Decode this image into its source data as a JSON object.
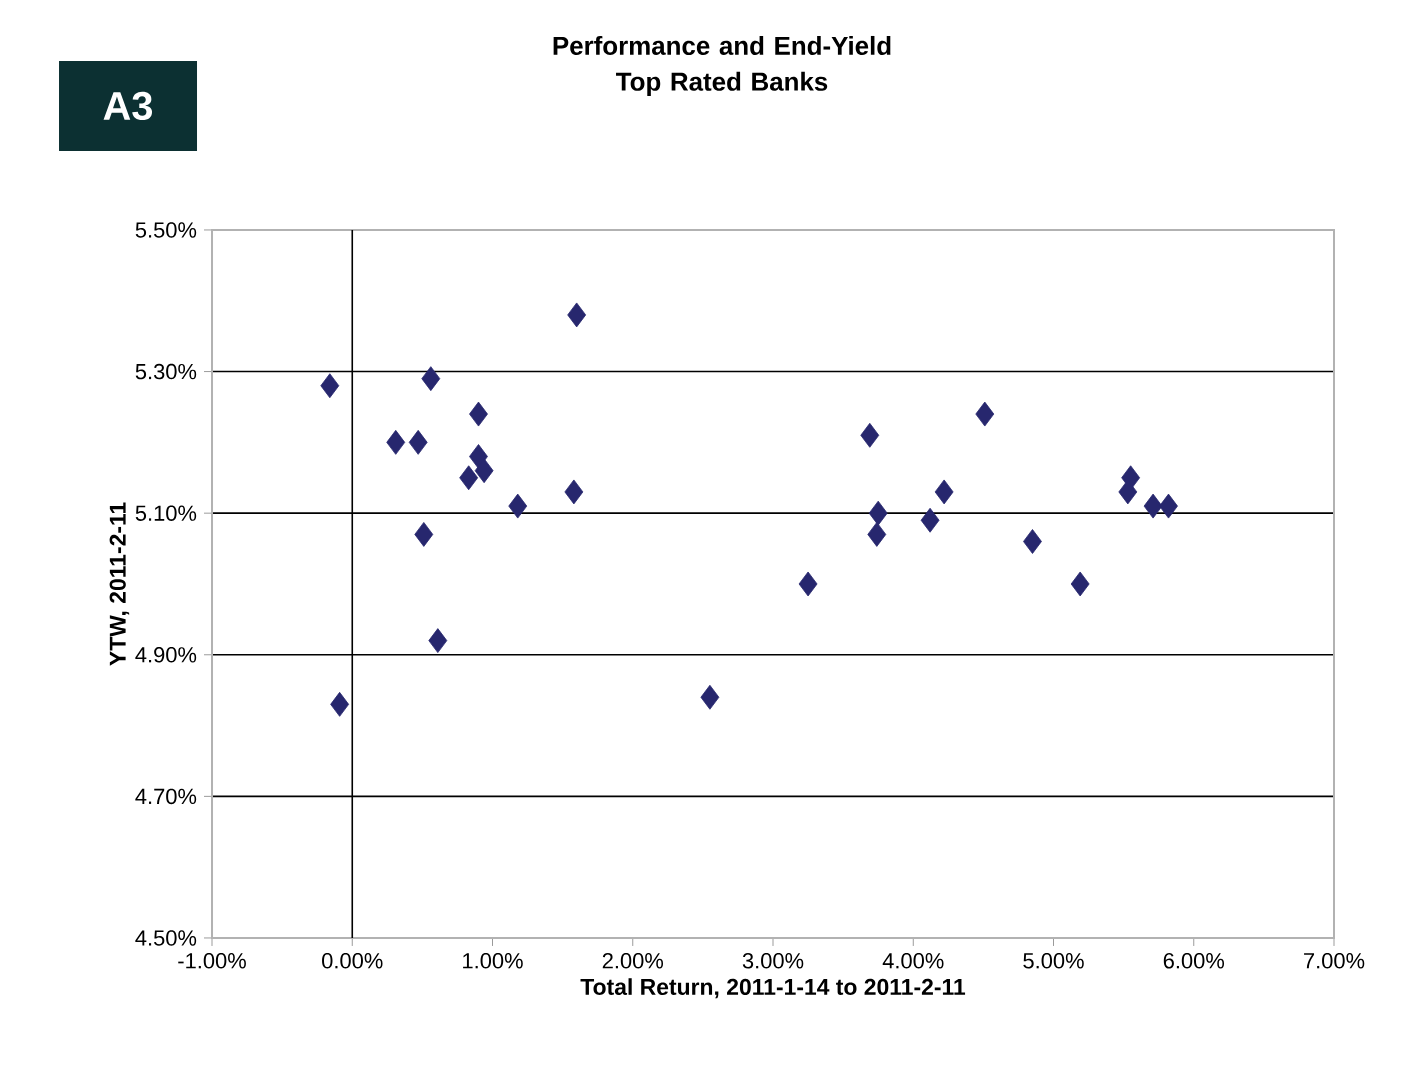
{
  "chart_data": {
    "type": "scatter",
    "title": "Performance and End-Yield\nTop Rated Banks",
    "xlabel": "Total Return, 2011-1-14 to 2011-2-11",
    "ylabel": "YTW, 2011-2-11",
    "annotations": [
      "A3"
    ],
    "x": [
      -0.16,
      -0.09,
      0.31,
      0.47,
      0.56,
      0.51,
      0.61,
      0.9,
      0.9,
      0.83,
      0.94,
      1.18,
      1.6,
      1.58,
      2.55,
      3.25,
      3.69,
      3.75,
      3.74,
      4.12,
      4.22,
      4.51,
      4.85,
      5.19,
      5.55,
      5.53,
      5.71,
      5.82
    ],
    "series": [
      {
        "color": "#27276e",
        "values": [
          5.28,
          4.83,
          5.2,
          5.2,
          5.29,
          5.07,
          4.92,
          5.24,
          5.18,
          5.15,
          5.16,
          5.11,
          5.38,
          5.13,
          4.84,
          5.0,
          5.21,
          5.1,
          5.07,
          5.09,
          5.13,
          5.24,
          5.06,
          5.0,
          5.15,
          5.13,
          5.11,
          5.11
        ]
      }
    ],
    "xlim": [
      -1,
      7
    ],
    "xticks": [
      {
        "value": -1,
        "label": "-1.00%"
      },
      {
        "value": 0,
        "label": "0.00%"
      },
      {
        "value": 1,
        "label": "1.00%"
      },
      {
        "value": 2,
        "label": "2.00%"
      },
      {
        "value": 3,
        "label": "3.00%"
      },
      {
        "value": 4,
        "label": "4.00%"
      },
      {
        "value": 5,
        "label": "5.00%"
      },
      {
        "value": 6,
        "label": "6.00%"
      },
      {
        "value": 7,
        "label": "7.00%"
      }
    ],
    "ylim": [
      4.5,
      5.5
    ],
    "yticks": [
      {
        "value": 4.5,
        "label": "4.50%"
      },
      {
        "value": 4.7,
        "label": "4.70%"
      },
      {
        "value": 4.9,
        "label": "4.90%"
      },
      {
        "value": 5.1,
        "label": "5.10%"
      },
      {
        "value": 5.3,
        "label": "5.30%"
      },
      {
        "value": 5.5,
        "label": "5.50%"
      }
    ],
    "ref_lines": [
      {
        "axis": "x",
        "value": 0,
        "color": "#000000"
      }
    ],
    "grid": "y",
    "marker": "diamond"
  }
}
